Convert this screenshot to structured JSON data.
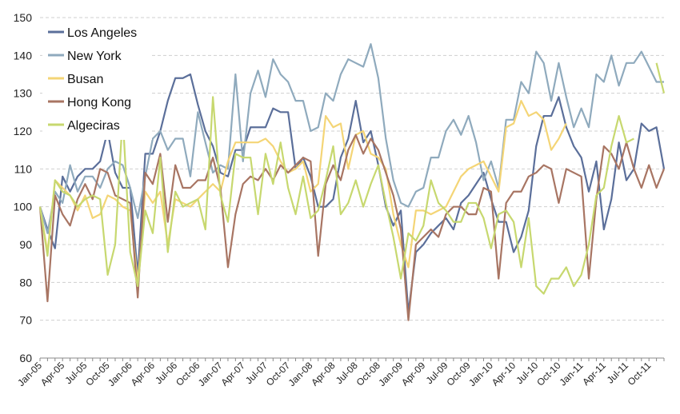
{
  "chart_data": {
    "type": "line",
    "title": "",
    "xlabel": "",
    "ylabel": "",
    "ylim": [
      60,
      150
    ],
    "yticks": [
      60,
      70,
      80,
      90,
      100,
      110,
      120,
      130,
      140,
      150
    ],
    "grid": true,
    "legend_position": "top-left",
    "x": [
      "Jan-05",
      "Feb-05",
      "Mar-05",
      "Apr-05",
      "May-05",
      "Jun-05",
      "Jul-05",
      "Aug-05",
      "Sep-05",
      "Oct-05",
      "Nov-05",
      "Dec-05",
      "Jan-06",
      "Feb-06",
      "Mar-06",
      "Apr-06",
      "May-06",
      "Jun-06",
      "Jul-06",
      "Aug-06",
      "Sep-06",
      "Oct-06",
      "Nov-06",
      "Dec-06",
      "Jan-07",
      "Feb-07",
      "Mar-07",
      "Apr-07",
      "May-07",
      "Jun-07",
      "Jul-07",
      "Aug-07",
      "Sep-07",
      "Oct-07",
      "Nov-07",
      "Dec-07",
      "Jan-08",
      "Feb-08",
      "Mar-08",
      "Apr-08",
      "May-08",
      "Jun-08",
      "Jul-08",
      "Aug-08",
      "Sep-08",
      "Oct-08",
      "Nov-08",
      "Dec-08",
      "Jan-09",
      "Feb-09",
      "Mar-09",
      "Apr-09",
      "May-09",
      "Jun-09",
      "Jul-09",
      "Aug-09",
      "Sep-09",
      "Oct-09",
      "Nov-09",
      "Dec-09",
      "Jan-10",
      "Feb-10",
      "Mar-10",
      "Apr-10",
      "May-10",
      "Jun-10",
      "Jul-10",
      "Aug-10",
      "Sep-10",
      "Oct-10",
      "Nov-10",
      "Dec-10",
      "Jan-11",
      "Feb-11",
      "Mar-11",
      "Apr-11",
      "May-11",
      "Jun-11",
      "Jul-11",
      "Aug-11",
      "Sep-11",
      "Oct-11",
      "Nov-11",
      "Dec-11"
    ],
    "x_tick_labels": [
      "Jan-05",
      "Apr-05",
      "Jul-05",
      "Oct-05",
      "Jan-06",
      "Apr-06",
      "Jul-06",
      "Oct-06",
      "Jan-07",
      "Apr-07",
      "Jul-07",
      "Oct-07",
      "Jan-08",
      "Apr-08",
      "Jul-08",
      "Oct-08",
      "Jan-09",
      "Apr-09",
      "Jul-09",
      "Oct-09",
      "Jan-10",
      "Apr-10",
      "Jul-10",
      "Oct-10",
      "Jan-11",
      "Apr-11",
      "Jul-11",
      "Oct-11"
    ],
    "series": [
      {
        "name": "Los Angeles",
        "color": "#5b6f9a",
        "values": [
          100,
          94,
          89,
          108,
          104,
          108,
          110,
          110,
          112,
          120,
          109,
          105,
          105,
          82,
          114,
          114,
          120,
          128,
          134,
          134,
          135,
          127,
          120,
          116,
          109,
          108,
          115,
          115,
          121,
          121,
          121,
          126,
          125,
          125,
          110,
          113,
          108,
          100,
          100,
          102,
          113,
          118,
          128,
          117,
          120,
          111,
          100,
          95,
          99,
          72,
          88,
          90,
          93,
          95,
          97,
          94,
          101,
          103,
          106,
          109,
          102,
          96,
          96,
          88,
          92,
          99,
          116,
          124,
          124,
          129,
          121,
          116,
          113,
          104,
          112,
          94,
          102,
          117,
          107,
          110,
          122,
          120,
          121,
          110
        ]
      },
      {
        "name": "New York",
        "color": "#8faabd",
        "values": [
          100,
          93,
          104,
          101,
          111,
          104,
          108,
          108,
          105,
          110,
          112,
          111,
          105,
          97,
          108,
          118,
          120,
          115,
          118,
          118,
          108,
          125,
          117,
          109,
          111,
          110,
          135,
          112,
          130,
          136,
          129,
          139,
          135,
          133,
          128,
          128,
          120,
          121,
          130,
          128,
          135,
          139,
          138,
          137,
          143,
          134,
          118,
          107,
          101,
          100,
          104,
          105,
          113,
          113,
          120,
          123,
          119,
          124,
          117,
          107,
          112,
          105,
          123,
          123,
          133,
          130,
          141,
          138,
          128,
          138,
          129,
          121,
          126,
          121,
          135,
          133,
          140,
          132,
          138,
          138,
          141,
          137,
          133,
          133
        ]
      },
      {
        "name": "Busan",
        "color": "#f4d576",
        "values": [
          100,
          88,
          107,
          105,
          103,
          99,
          103,
          97,
          98,
          103,
          102,
          100,
          99,
          80,
          104,
          101,
          104,
          90,
          102,
          101,
          100,
          102,
          104,
          106,
          104,
          112,
          117,
          117,
          117,
          117,
          118,
          116,
          112,
          109,
          110,
          112,
          104,
          106,
          124,
          121,
          122,
          110,
          119,
          120,
          114,
          113,
          110,
          98,
          90,
          84,
          99,
          99,
          98,
          99,
          100,
          104,
          108,
          110,
          111,
          112,
          108,
          104,
          121,
          122,
          128,
          124,
          125,
          123,
          115,
          118,
          122,
          null,
          null,
          null,
          null,
          null,
          null,
          null,
          null,
          null,
          null,
          null,
          null,
          null
        ]
      },
      {
        "name": "Hong Kong",
        "color": "#a87563",
        "values": [
          100,
          75,
          103,
          98,
          95,
          102,
          106,
          102,
          110,
          109,
          103,
          102,
          101,
          76,
          109,
          106,
          114,
          96,
          111,
          105,
          105,
          107,
          107,
          113,
          105,
          84,
          98,
          106,
          108,
          107,
          110,
          107,
          111,
          109,
          111,
          113,
          112,
          87,
          106,
          111,
          107,
          115,
          119,
          114,
          118,
          115,
          109,
          103,
          94,
          70,
          90,
          92,
          94,
          92,
          98,
          100,
          100,
          98,
          98,
          105,
          104,
          81,
          101,
          104,
          104,
          108,
          109,
          111,
          110,
          101,
          110,
          109,
          108,
          81,
          102,
          116,
          114,
          110,
          117,
          110,
          105,
          111,
          105,
          110
        ]
      },
      {
        "name": "Algeciras",
        "color": "#c7d86f",
        "values": [
          100,
          87,
          107,
          104,
          103,
          100,
          102,
          103,
          102,
          82,
          90,
          124,
          88,
          79,
          99,
          93,
          113,
          88,
          104,
          100,
          101,
          102,
          94,
          129,
          103,
          96,
          114,
          113,
          113,
          98,
          114,
          106,
          117,
          105,
          98,
          108,
          97,
          99,
          107,
          116,
          98,
          101,
          107,
          100,
          106,
          111,
          101,
          92,
          81,
          93,
          91,
          95,
          107,
          101,
          99,
          96,
          96,
          101,
          101,
          97,
          89,
          98,
          99,
          96,
          84,
          97,
          79,
          77,
          81,
          81,
          84,
          79,
          82,
          90,
          103,
          105,
          116,
          124,
          117,
          118,
          null,
          null,
          138,
          130
        ]
      }
    ]
  }
}
